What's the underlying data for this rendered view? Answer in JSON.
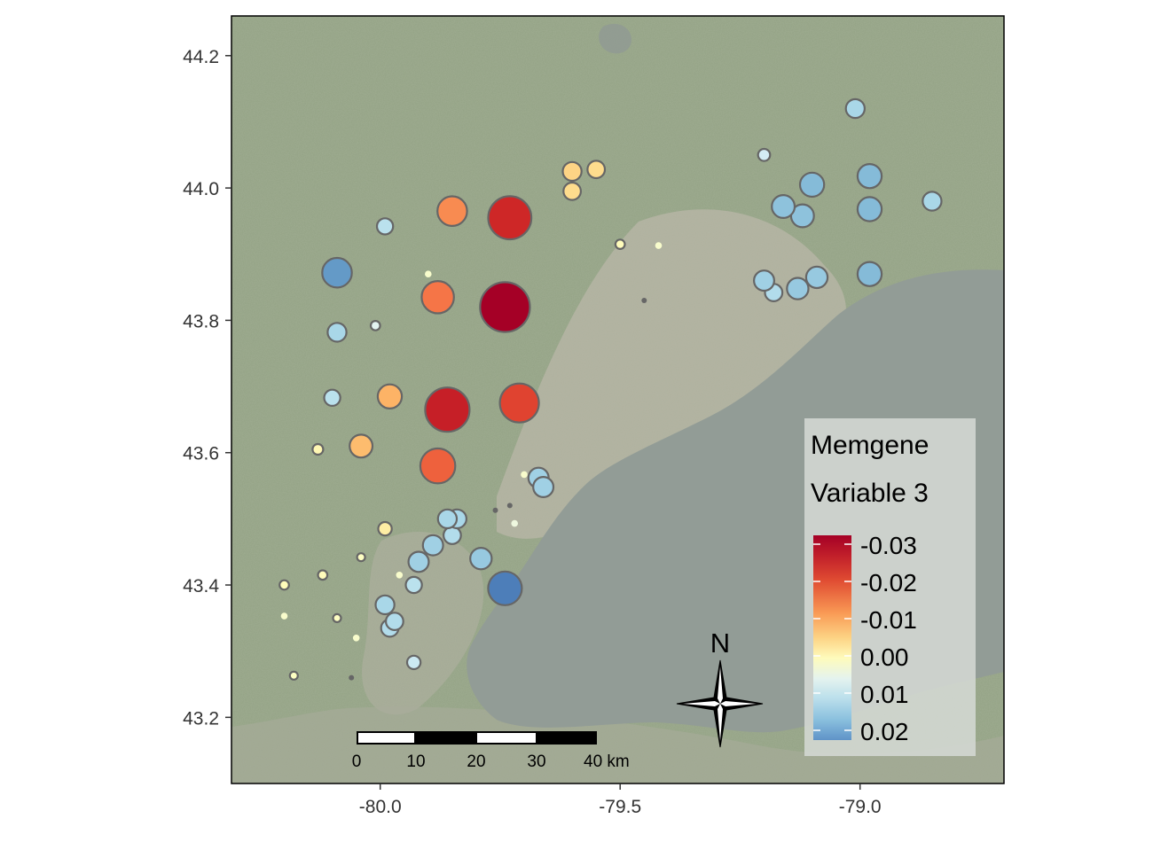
{
  "map": {
    "x_ticks": [
      "-80.0",
      "-79.5",
      "-79.0"
    ],
    "y_ticks": [
      "43.2",
      "43.4",
      "43.6",
      "43.8",
      "44.0",
      "44.2"
    ],
    "x_range": [
      -80.31,
      -78.7
    ],
    "y_range": [
      43.1,
      44.26
    ],
    "basemap": "satellite imagery with Lake Ontario",
    "colors": {
      "land": "#8f9f80",
      "urban": "#b8b5a7",
      "lake": "#929c96",
      "point_outline": "#666666"
    }
  },
  "legend": {
    "title_line1": "Memgene",
    "title_line2": "Variable 3",
    "labels": [
      "-0.03",
      "-0.02",
      "-0.01",
      "0.00",
      "0.01",
      "0.02"
    ],
    "color_stops": [
      "#a50026",
      "#d73027",
      "#f46d43",
      "#fdae61",
      "#fee090",
      "#ffffbf",
      "#e0f3f8",
      "#abd9e9",
      "#74add1",
      "#4575b4"
    ]
  },
  "scale_bar": {
    "labels": [
      "0",
      "10",
      "20",
      "30",
      "40 km"
    ]
  },
  "north_arrow": {
    "label": "N"
  },
  "chart_data": {
    "type": "scatter",
    "x_label": "",
    "y_label": "",
    "value_name": "Memgene Variable 3",
    "value_range": [
      -0.033,
      0.022
    ],
    "points": [
      {
        "lon": -79.74,
        "lat": 43.82,
        "value": -0.033
      },
      {
        "lon": -79.73,
        "lat": 43.955,
        "value": -0.028
      },
      {
        "lon": -79.86,
        "lat": 43.665,
        "value": -0.029
      },
      {
        "lon": -79.71,
        "lat": 43.675,
        "value": -0.025
      },
      {
        "lon": -79.88,
        "lat": 43.58,
        "value": -0.022
      },
      {
        "lon": -79.88,
        "lat": 43.835,
        "value": -0.02
      },
      {
        "lon": -79.85,
        "lat": 43.965,
        "value": -0.018
      },
      {
        "lon": -79.98,
        "lat": 43.685,
        "value": -0.014
      },
      {
        "lon": -80.04,
        "lat": 43.61,
        "value": -0.013
      },
      {
        "lon": -79.6,
        "lat": 44.025,
        "value": -0.01
      },
      {
        "lon": -79.55,
        "lat": 44.028,
        "value": -0.009
      },
      {
        "lon": -79.6,
        "lat": 43.995,
        "value": -0.009
      },
      {
        "lon": -79.99,
        "lat": 43.485,
        "value": -0.006
      },
      {
        "lon": -80.13,
        "lat": 43.605,
        "value": -0.004
      },
      {
        "lon": -79.5,
        "lat": 43.915,
        "value": -0.003
      },
      {
        "lon": -80.12,
        "lat": 43.415,
        "value": -0.003
      },
      {
        "lon": -80.2,
        "lat": 43.4,
        "value": -0.003
      },
      {
        "lon": -80.04,
        "lat": 43.442,
        "value": -0.002
      },
      {
        "lon": -80.09,
        "lat": 43.35,
        "value": -0.002
      },
      {
        "lon": -80.18,
        "lat": 43.263,
        "value": -0.002
      },
      {
        "lon": -80.2,
        "lat": 43.353,
        "value": -0.001
      },
      {
        "lon": -80.05,
        "lat": 43.32,
        "value": -0.001
      },
      {
        "lon": -79.42,
        "lat": 43.913,
        "value": -0.001
      },
      {
        "lon": -79.9,
        "lat": 43.87,
        "value": -0.001
      },
      {
        "lon": -79.7,
        "lat": 43.567,
        "value": -0.001
      },
      {
        "lon": -79.96,
        "lat": 43.415,
        "value": -0.001
      },
      {
        "lon": -80.06,
        "lat": 43.26,
        "value": 0.0
      },
      {
        "lon": -79.76,
        "lat": 43.513,
        "value": 0.0
      },
      {
        "lon": -79.73,
        "lat": 43.52,
        "value": 0.0
      },
      {
        "lon": -79.72,
        "lat": 43.493,
        "value": 0.001
      },
      {
        "lon": -80.01,
        "lat": 43.792,
        "value": 0.003
      },
      {
        "lon": -79.2,
        "lat": 44.05,
        "value": 0.005
      },
      {
        "lon": -79.93,
        "lat": 43.283,
        "value": 0.006
      },
      {
        "lon": -79.93,
        "lat": 43.4,
        "value": 0.008
      },
      {
        "lon": -79.99,
        "lat": 43.942,
        "value": 0.008
      },
      {
        "lon": -80.1,
        "lat": 43.683,
        "value": 0.008
      },
      {
        "lon": -79.98,
        "lat": 43.335,
        "value": 0.009
      },
      {
        "lon": -79.18,
        "lat": 43.842,
        "value": 0.009
      },
      {
        "lon": -79.97,
        "lat": 43.345,
        "value": 0.009
      },
      {
        "lon": -79.85,
        "lat": 43.475,
        "value": 0.009
      },
      {
        "lon": -79.84,
        "lat": 43.5,
        "value": 0.01
      },
      {
        "lon": -79.86,
        "lat": 43.5,
        "value": 0.01
      },
      {
        "lon": -79.99,
        "lat": 43.37,
        "value": 0.01
      },
      {
        "lon": -78.85,
        "lat": 43.98,
        "value": 0.01
      },
      {
        "lon": -79.01,
        "lat": 44.12,
        "value": 0.01
      },
      {
        "lon": -80.09,
        "lat": 43.782,
        "value": 0.01
      },
      {
        "lon": -79.2,
        "lat": 43.86,
        "value": 0.011
      },
      {
        "lon": -79.67,
        "lat": 43.562,
        "value": 0.011
      },
      {
        "lon": -79.66,
        "lat": 43.548,
        "value": 0.011
      },
      {
        "lon": -79.89,
        "lat": 43.46,
        "value": 0.011
      },
      {
        "lon": -79.92,
        "lat": 43.435,
        "value": 0.011
      },
      {
        "lon": -79.13,
        "lat": 43.848,
        "value": 0.012
      },
      {
        "lon": -79.09,
        "lat": 43.865,
        "value": 0.012
      },
      {
        "lon": -79.79,
        "lat": 43.44,
        "value": 0.012
      },
      {
        "lon": -79.12,
        "lat": 43.958,
        "value": 0.013
      },
      {
        "lon": -79.16,
        "lat": 43.972,
        "value": 0.013
      },
      {
        "lon": -79.1,
        "lat": 44.005,
        "value": 0.014
      },
      {
        "lon": -78.98,
        "lat": 44.018,
        "value": 0.014
      },
      {
        "lon": -78.98,
        "lat": 43.968,
        "value": 0.014
      },
      {
        "lon": -78.98,
        "lat": 43.87,
        "value": 0.014
      },
      {
        "lon": -80.09,
        "lat": 43.872,
        "value": 0.018
      },
      {
        "lon": -79.74,
        "lat": 43.395,
        "value": 0.021
      },
      {
        "lon": -79.45,
        "lat": 43.83,
        "value": 0.0
      }
    ]
  }
}
